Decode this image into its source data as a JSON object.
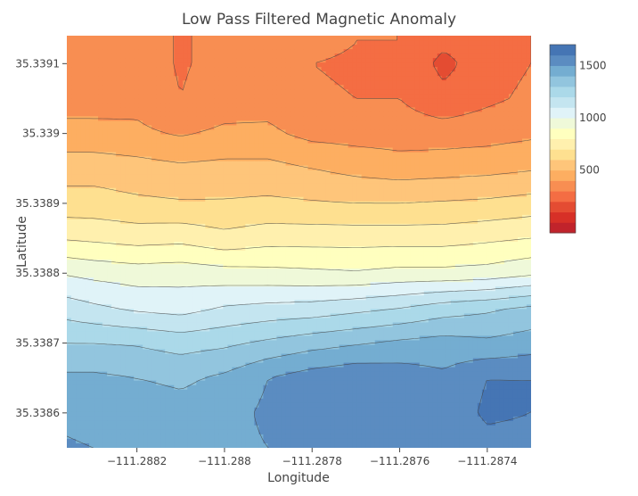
{
  "chart_data": {
    "type": "contour",
    "title": "Low Pass Filtered Magnetic Anomaly",
    "xlabel": "Longitude",
    "ylabel": "Latitude",
    "x_ticks": [
      "−111.2882",
      "−111.288",
      "−111.2878",
      "−111.2876",
      "−111.2874"
    ],
    "x_tick_values": [
      -111.2882,
      -111.288,
      -111.2878,
      -111.2876,
      -111.2874
    ],
    "y_ticks": [
      "35.3391",
      "35.339",
      "35.3389",
      "35.3388",
      "35.3387",
      "35.3386"
    ],
    "y_tick_values": [
      35.3391,
      35.339,
      35.3389,
      35.3388,
      35.3387,
      35.3386
    ],
    "xlim": [
      -111.28836,
      -111.2873
    ],
    "ylim": [
      35.33855,
      35.33914
    ],
    "grid": false,
    "colorbar": {
      "tick_labels": [
        "500",
        "1000",
        "1500"
      ],
      "tick_values": [
        500,
        1000,
        1500
      ],
      "range": [
        -100,
        1700
      ],
      "colorscale": "RdYlBu",
      "levels": [
        -100,
        0,
        100,
        200,
        300,
        400,
        500,
        600,
        700,
        800,
        900,
        1000,
        1100,
        1200,
        1300,
        1400,
        1500,
        1600,
        1700
      ],
      "colors": [
        "#a50026",
        "#c1232b",
        "#d73027",
        "#e44c32",
        "#f46d43",
        "#f88e52",
        "#fdae61",
        "#fec57a",
        "#fee090",
        "#fff0ae",
        "#ffffbf",
        "#eff9d9",
        "#e0f3f8",
        "#c4e5f0",
        "#abd9e9",
        "#92c5de",
        "#74add1",
        "#5b8cc1",
        "#4575b4",
        "#3b4ea1"
      ]
    },
    "rows_latitude": [
      35.33913,
      35.3391,
      35.33905,
      35.339,
      35.33895,
      35.3389,
      35.33885,
      35.3388,
      35.33875,
      35.3387,
      35.33865,
      35.3386,
      35.33855
    ],
    "cols_longitude": [
      -111.28836,
      -111.2883,
      -111.2882,
      -111.2881,
      -111.288,
      -111.2879,
      -111.2878,
      -111.2877,
      -111.2876,
      -111.2875,
      -111.2874,
      -111.2873
    ],
    "z": [
      [
        350,
        350,
        350,
        290,
        330,
        340,
        320,
        300,
        300,
        220,
        270,
        300
      ],
      [
        350,
        350,
        350,
        290,
        330,
        340,
        300,
        290,
        290,
        170,
        260,
        300
      ],
      [
        360,
        360,
        370,
        300,
        350,
        360,
        310,
        300,
        300,
        230,
        280,
        320
      ],
      [
        430,
        430,
        420,
        390,
        420,
        420,
        370,
        360,
        350,
        350,
        360,
        380
      ],
      [
        560,
        560,
        540,
        520,
        530,
        530,
        500,
        470,
        450,
        460,
        470,
        490
      ],
      [
        640,
        640,
        620,
        610,
        610,
        620,
        610,
        600,
        600,
        610,
        620,
        640
      ],
      [
        790,
        780,
        760,
        770,
        730,
        760,
        760,
        760,
        760,
        760,
        780,
        800
      ],
      [
        990,
        970,
        950,
        960,
        940,
        930,
        920,
        910,
        930,
        930,
        940,
        980
      ],
      [
        1150,
        1120,
        1080,
        1060,
        1110,
        1130,
        1140,
        1170,
        1200,
        1250,
        1280,
        1320
      ],
      [
        1300,
        1300,
        1290,
        1260,
        1280,
        1320,
        1360,
        1390,
        1420,
        1440,
        1420,
        1450
      ],
      [
        1420,
        1420,
        1400,
        1380,
        1420,
        1500,
        1550,
        1580,
        1560,
        1520,
        1600,
        1600
      ],
      [
        1480,
        1470,
        1460,
        1440,
        1460,
        1520,
        1560,
        1600,
        1530,
        1530,
        1620,
        1600
      ],
      [
        1510,
        1500,
        1490,
        1460,
        1470,
        1500,
        1520,
        1540,
        1500,
        1500,
        1560,
        1560
      ]
    ]
  }
}
